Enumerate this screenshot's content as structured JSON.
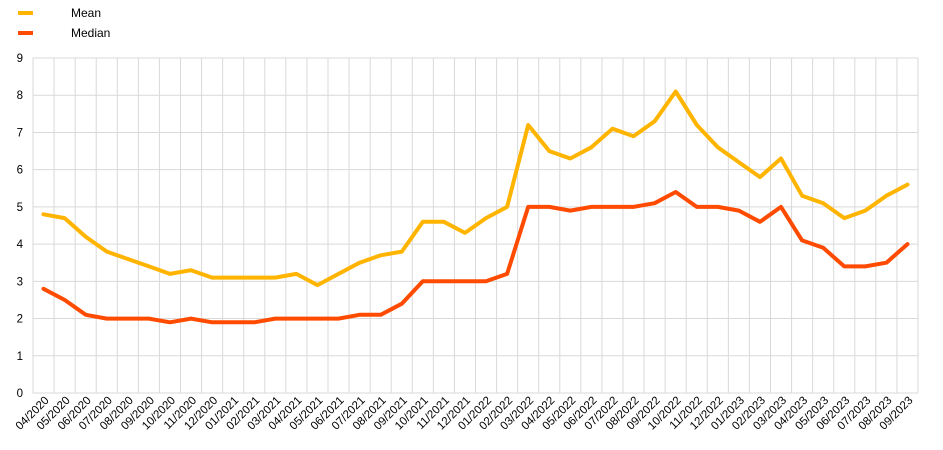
{
  "chart_data": {
    "type": "line",
    "title": "",
    "xlabel": "",
    "ylabel": "",
    "ylim": [
      0,
      9
    ],
    "yticks": [
      0,
      1,
      2,
      3,
      4,
      5,
      6,
      7,
      8,
      9
    ],
    "grid": true,
    "legend_position": "top-left",
    "categories": [
      "04/2020",
      "05/2020",
      "06/2020",
      "07/2020",
      "08/2020",
      "09/2020",
      "10/2020",
      "11/2020",
      "12/2020",
      "01/2021",
      "02/2021",
      "03/2021",
      "04/2021",
      "05/2021",
      "06/2021",
      "07/2021",
      "08/2021",
      "09/2021",
      "10/2021",
      "11/2021",
      "12/2021",
      "01/2022",
      "02/2022",
      "03/2022",
      "04/2022",
      "05/2022",
      "06/2022",
      "07/2022",
      "08/2022",
      "09/2022",
      "10/2022",
      "11/2022",
      "12/2022",
      "01/2023",
      "02/2023",
      "03/2023",
      "04/2023",
      "05/2023",
      "06/2023",
      "07/2023",
      "08/2023",
      "09/2023"
    ],
    "series": [
      {
        "name": "Mean",
        "color": "#FFB400",
        "values": [
          4.8,
          4.7,
          4.2,
          3.8,
          3.6,
          3.4,
          3.2,
          3.3,
          3.1,
          3.1,
          3.1,
          3.1,
          3.2,
          2.9,
          3.2,
          3.5,
          3.7,
          3.8,
          4.6,
          4.6,
          4.3,
          4.7,
          5.0,
          7.2,
          6.5,
          6.3,
          6.6,
          7.1,
          6.9,
          7.3,
          8.1,
          7.2,
          6.6,
          6.2,
          5.8,
          6.3,
          5.3,
          5.1,
          4.7,
          4.9,
          5.3,
          5.6
        ]
      },
      {
        "name": "Median",
        "color": "#FF4B00",
        "values": [
          2.8,
          2.5,
          2.1,
          2.0,
          2.0,
          2.0,
          1.9,
          2.0,
          1.9,
          1.9,
          1.9,
          2.0,
          2.0,
          2.0,
          2.0,
          2.1,
          2.1,
          2.4,
          3.0,
          3.0,
          3.0,
          3.0,
          3.2,
          5.0,
          5.0,
          4.9,
          5.0,
          5.0,
          5.0,
          5.1,
          5.4,
          5.0,
          5.0,
          4.9,
          4.6,
          5.0,
          4.1,
          3.9,
          3.4,
          3.4,
          3.5,
          4.0
        ]
      }
    ]
  }
}
